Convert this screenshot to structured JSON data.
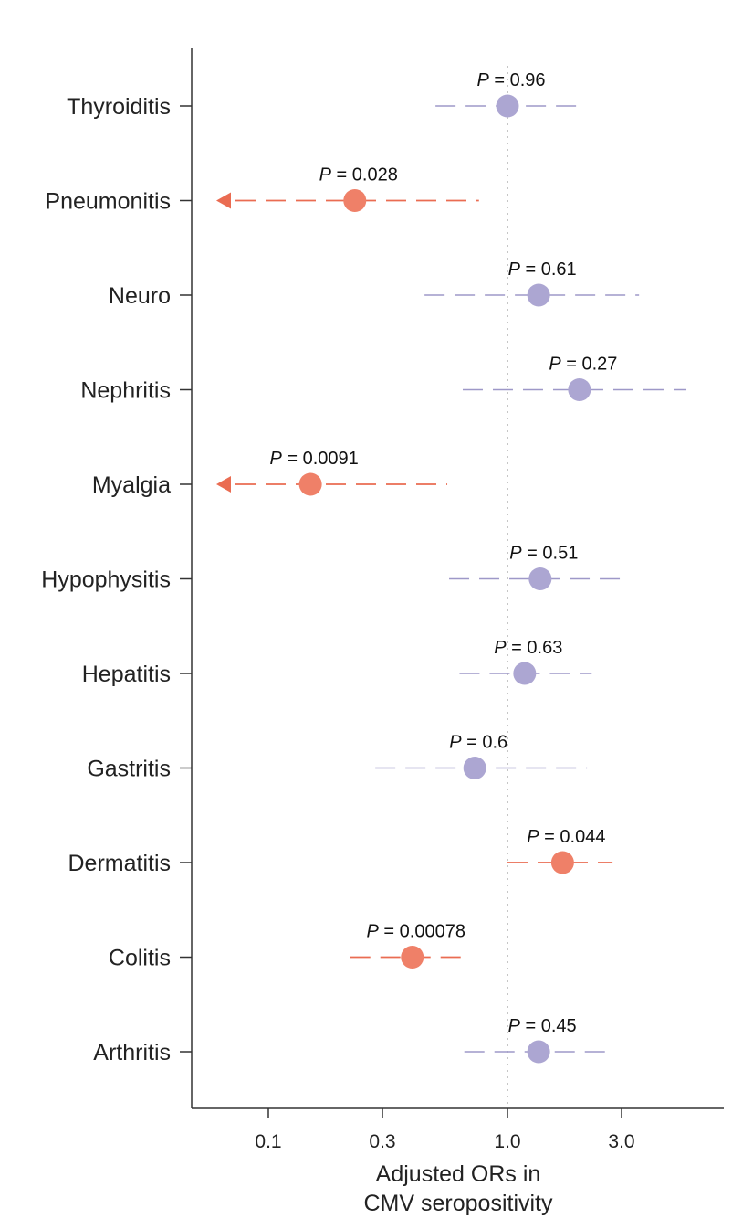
{
  "chart_data": {
    "type": "forest",
    "xlabel_lines": [
      "Adjusted ORs in",
      "CMV seropositivity"
    ],
    "xscale": "log",
    "xlim": [
      0.065,
      6.4
    ],
    "xticks": [
      {
        "value": 0.1,
        "label": "0.1"
      },
      {
        "value": 0.3,
        "label": "0.3"
      },
      {
        "value": 1.0,
        "label": "1.0"
      },
      {
        "value": 3.0,
        "label": "3.0"
      }
    ],
    "reference_line": 1.0,
    "p_prefix": "P",
    "rows": [
      {
        "label": "Thyroiditis",
        "or": 1.0,
        "ci_low": 0.5,
        "ci_high": 2.05,
        "p": "0.96",
        "significant": false,
        "truncated_low": false
      },
      {
        "label": "Pneumonitis",
        "or": 0.23,
        "ci_low": null,
        "ci_high": 0.76,
        "p": "0.028",
        "significant": true,
        "truncated_low": true
      },
      {
        "label": "Neuro",
        "or": 1.35,
        "ci_low": 0.45,
        "ci_high": 3.55,
        "p": "0.61",
        "significant": false,
        "truncated_low": false
      },
      {
        "label": "Nephritis",
        "or": 2.0,
        "ci_low": 0.65,
        "ci_high": 5.6,
        "p": "0.27",
        "significant": false,
        "truncated_low": false
      },
      {
        "label": "Myalgia",
        "or": 0.15,
        "ci_low": null,
        "ci_high": 0.56,
        "p": "0.0091",
        "significant": true,
        "truncated_low": true
      },
      {
        "label": "Hypophysitis",
        "or": 1.37,
        "ci_low": 0.57,
        "ci_high": 3.05,
        "p": "0.51",
        "significant": false,
        "truncated_low": false
      },
      {
        "label": "Hepatitis",
        "or": 1.18,
        "ci_low": 0.63,
        "ci_high": 2.25,
        "p": "0.63",
        "significant": false,
        "truncated_low": false
      },
      {
        "label": "Gastritis",
        "or": 0.73,
        "ci_low": 0.28,
        "ci_high": 2.15,
        "p": "0.6",
        "significant": false,
        "truncated_low": false
      },
      {
        "label": "Dermatitis",
        "or": 1.7,
        "ci_low": 1.0,
        "ci_high": 2.75,
        "p": "0.044",
        "significant": true,
        "truncated_low": false
      },
      {
        "label": "Colitis",
        "or": 0.4,
        "ci_low": 0.22,
        "ci_high": 0.7,
        "p": "0.00078",
        "significant": true,
        "truncated_low": false
      },
      {
        "label": "Arthritis",
        "or": 1.35,
        "ci_low": 0.66,
        "ci_high": 2.7,
        "p": "0.45",
        "significant": false,
        "truncated_low": false
      }
    ],
    "colors": {
      "significant": "#ef8068",
      "significant_line": "#ea6c52",
      "nonsignificant": "#aca6d2",
      "nonsignificant_line": "#9e98c8",
      "axis": "#333333",
      "reference": "#b8b8b8"
    }
  }
}
